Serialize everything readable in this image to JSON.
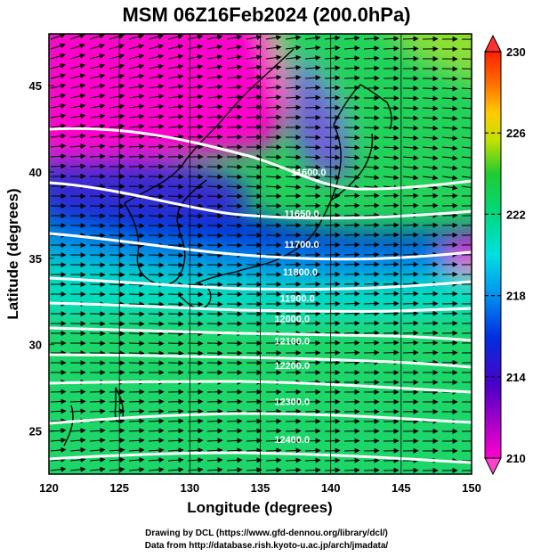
{
  "title": "MSM 06Z16Feb2024 (200.0hPa)",
  "xlabel": "Longitude (degrees)",
  "ylabel": "Latitude  (degrees)",
  "xticks": [
    "120",
    "125",
    "130",
    "135",
    "140",
    "145",
    "150"
  ],
  "yticks": [
    "25",
    "30",
    "35",
    "40",
    "45"
  ],
  "colorbar_ticks": [
    "230",
    "226",
    "222",
    "218",
    "214",
    "210"
  ],
  "credits": [
    "Drawing by DCL (https://www.gfd-dennou.org/library/dcl/)",
    "Data from http://database.rish.kyoto-u.ac.jp/arch/jmadata/"
  ],
  "colors": {
    "cold": "#ff00cc",
    "cool": "#0044dd",
    "mid": "#00e0d8",
    "warm": "#22d25a",
    "contour": "#ffffff"
  },
  "chart_data": {
    "type": "heatmap",
    "title": "MSM 06Z16Feb2024 (200.0hPa)",
    "xlabel": "Longitude (degrees)",
    "ylabel": "Latitude  (degrees)",
    "xlim": [
      120,
      150
    ],
    "ylim": [
      22.5,
      48
    ],
    "colorbar": {
      "min": 210,
      "max": 230,
      "ticks": [
        230,
        226,
        222,
        218,
        214,
        210
      ]
    },
    "contour_labels": [
      {
        "text": "11600.0",
        "lon": 137.2,
        "lat": 39.8
      },
      {
        "text": "11650.0",
        "lon": 136.7,
        "lat": 37.4
      },
      {
        "text": "11700.0",
        "lon": 136.7,
        "lat": 35.6
      },
      {
        "text": "11800.0",
        "lon": 136.6,
        "lat": 34.0
      },
      {
        "text": "11900.0",
        "lon": 136.4,
        "lat": 32.5
      },
      {
        "text": "12000.0",
        "lon": 136.0,
        "lat": 31.3
      },
      {
        "text": "12100.0",
        "lon": 136.0,
        "lat": 30.0
      },
      {
        "text": "12200.0",
        "lon": 136.0,
        "lat": 28.6
      },
      {
        "text": "12300.0",
        "lon": 136.0,
        "lat": 26.5
      },
      {
        "text": "12400.0",
        "lon": 136.0,
        "lat": 24.3
      }
    ]
  }
}
